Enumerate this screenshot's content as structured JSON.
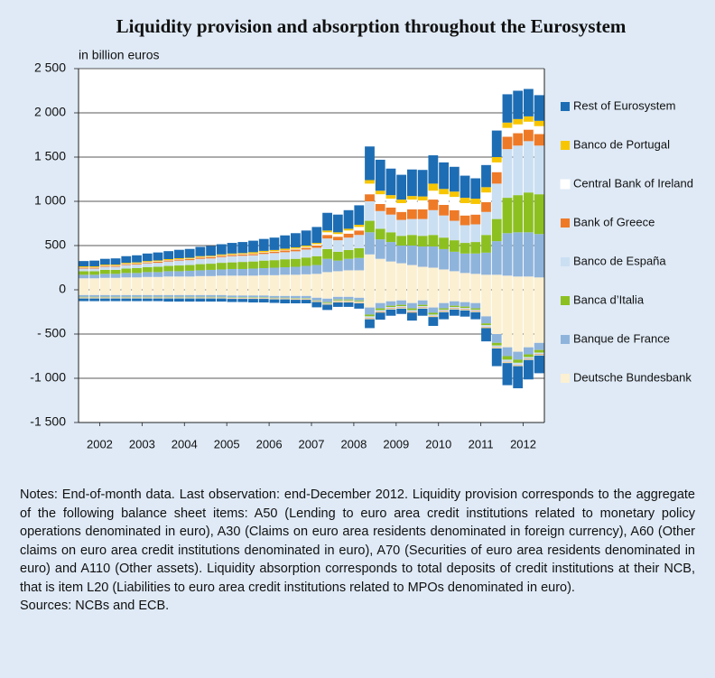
{
  "chart_data": {
    "type": "stacked-bar",
    "title": "Liquidity provision and absorption throughout the Eurosystem",
    "y_label": "in billion euros",
    "x": [
      2002.125,
      2002.375,
      2002.625,
      2002.875,
      2003.125,
      2003.375,
      2003.625,
      2003.875,
      2004.125,
      2004.375,
      2004.625,
      2004.875,
      2005.125,
      2005.375,
      2005.625,
      2005.875,
      2006.125,
      2006.375,
      2006.625,
      2006.875,
      2007.125,
      2007.375,
      2007.625,
      2007.875,
      2008.125,
      2008.375,
      2008.625,
      2008.875,
      2009.125,
      2009.375,
      2009.625,
      2009.875,
      2010.125,
      2010.375,
      2010.625,
      2010.875,
      2011.125,
      2011.375,
      2011.625,
      2011.875,
      2012.125,
      2012.375,
      2012.625,
      2012.875
    ],
    "xlim": [
      2002,
      2013
    ],
    "xticks": [
      {
        "value": 2002.5,
        "label": "2002"
      },
      {
        "value": 2003.5,
        "label": "2003"
      },
      {
        "value": 2004.5,
        "label": "2004"
      },
      {
        "value": 2005.5,
        "label": "2005"
      },
      {
        "value": 2006.5,
        "label": "2006"
      },
      {
        "value": 2007.5,
        "label": "2007"
      },
      {
        "value": 2008.5,
        "label": "2008"
      },
      {
        "value": 2009.5,
        "label": "2009"
      },
      {
        "value": 2010.5,
        "label": "2010"
      },
      {
        "value": 2011.5,
        "label": "2011"
      },
      {
        "value": 2012.5,
        "label": "2012"
      }
    ],
    "ylim": [
      -1500,
      2500
    ],
    "yticks": [
      {
        "value": -1500,
        "label": "-1 500"
      },
      {
        "value": -1000,
        "label": "-1 000"
      },
      {
        "value": -500,
        "label": "- 500"
      },
      0,
      500,
      {
        "value": 1000,
        "label": "1 000"
      },
      {
        "value": 1500,
        "label": "1 500"
      },
      {
        "value": 2000,
        "label": "2 000"
      },
      {
        "value": 2500,
        "label": "2 500"
      }
    ],
    "grid": true,
    "series": [
      {
        "name": "Deutsche Bundesbank",
        "color": "#fbf0d2",
        "values": [
          130,
          130,
          135,
          135,
          140,
          140,
          145,
          145,
          150,
          150,
          150,
          155,
          155,
          160,
          160,
          160,
          160,
          165,
          165,
          170,
          170,
          175,
          180,
          200,
          210,
          220,
          220,
          400,
          350,
          320,
          300,
          280,
          260,
          250,
          230,
          210,
          190,
          180,
          170,
          170,
          160,
          150,
          150,
          140
        ],
        "absorption": [
          -60,
          -60,
          -60,
          -60,
          -60,
          -60,
          -60,
          -60,
          -60,
          -60,
          -60,
          -60,
          -60,
          -60,
          -65,
          -65,
          -65,
          -65,
          -70,
          -70,
          -70,
          -70,
          -90,
          -100,
          -80,
          -80,
          -90,
          -200,
          -150,
          -130,
          -120,
          -150,
          -120,
          -200,
          -150,
          -130,
          -140,
          -150,
          -300,
          -500,
          -650,
          -700,
          -650,
          -600
        ]
      },
      {
        "name": "Banque de France",
        "color": "#8fb4dc",
        "values": [
          40,
          40,
          45,
          45,
          50,
          50,
          55,
          55,
          60,
          60,
          65,
          65,
          70,
          70,
          75,
          75,
          80,
          80,
          85,
          85,
          90,
          95,
          100,
          150,
          120,
          130,
          140,
          250,
          220,
          220,
          200,
          220,
          230,
          240,
          230,
          220,
          220,
          230,
          250,
          380,
          480,
          500,
          500,
          490
        ],
        "absorption": [
          -20,
          -20,
          -20,
          -20,
          -20,
          -20,
          -20,
          -20,
          -20,
          -20,
          -20,
          -20,
          -20,
          -20,
          -20,
          -20,
          -20,
          -20,
          -20,
          -20,
          -25,
          -25,
          -30,
          -40,
          -30,
          -30,
          -30,
          -80,
          -60,
          -50,
          -50,
          -60,
          -50,
          -60,
          -60,
          -50,
          -50,
          -60,
          -80,
          -100,
          -100,
          -90,
          -80,
          -80
        ]
      },
      {
        "name": "Banca d’Italia",
        "color": "#8cc021",
        "values": [
          40,
          40,
          45,
          45,
          50,
          55,
          55,
          60,
          60,
          65,
          65,
          70,
          70,
          75,
          75,
          80,
          80,
          85,
          85,
          90,
          90,
          95,
          100,
          110,
          100,
          100,
          110,
          130,
          120,
          110,
          110,
          120,
          120,
          130,
          130,
          130,
          120,
          130,
          200,
          250,
          400,
          420,
          450,
          450
        ],
        "absorption": [
          -5,
          -5,
          -5,
          -5,
          -5,
          -5,
          -5,
          -5,
          -5,
          -5,
          -5,
          -5,
          -5,
          -5,
          -5,
          -5,
          -5,
          -5,
          -5,
          -5,
          -5,
          -5,
          -5,
          -10,
          -10,
          -10,
          -10,
          -20,
          -20,
          -15,
          -15,
          -20,
          -15,
          -20,
          -15,
          -15,
          -15,
          -15,
          -20,
          -30,
          -40,
          -35,
          -30,
          -30
        ]
      },
      {
        "name": "Banco de España",
        "color": "#cbdff2",
        "values": [
          30,
          30,
          35,
          35,
          40,
          40,
          45,
          45,
          50,
          55,
          55,
          60,
          60,
          65,
          70,
          70,
          70,
          75,
          80,
          80,
          85,
          90,
          95,
          120,
          130,
          140,
          150,
          220,
          200,
          200,
          180,
          180,
          190,
          280,
          250,
          220,
          200,
          200,
          260,
          400,
          550,
          560,
          580,
          550
        ],
        "absorption": [
          -5,
          -5,
          -5,
          -5,
          -5,
          -5,
          -5,
          -5,
          -5,
          -5,
          -5,
          -5,
          -5,
          -5,
          -5,
          -5,
          -5,
          -5,
          -5,
          -5,
          -5,
          -5,
          -5,
          -10,
          -10,
          -10,
          -10,
          -20,
          -15,
          -15,
          -15,
          -15,
          -15,
          -15,
          -15,
          -15,
          -15,
          -15,
          -20,
          -20,
          -25,
          -25,
          -20,
          -20
        ]
      },
      {
        "name": "Bank of Greece",
        "color": "#ee7a28",
        "values": [
          10,
          10,
          10,
          10,
          10,
          10,
          10,
          12,
          12,
          12,
          12,
          15,
          15,
          15,
          15,
          15,
          15,
          15,
          15,
          20,
          20,
          20,
          25,
          40,
          40,
          45,
          50,
          80,
          80,
          80,
          90,
          110,
          110,
          120,
          120,
          120,
          110,
          110,
          110,
          130,
          140,
          140,
          130,
          130
        ],
        "absorption": [
          -3,
          -3,
          -3,
          -3,
          -3,
          -3,
          -3,
          -3,
          -3,
          -3,
          -3,
          -3,
          -3,
          -3,
          -3,
          -3,
          -3,
          -3,
          -3,
          -3,
          -3,
          -3,
          -3,
          -3,
          -5,
          -5,
          -5,
          -5,
          -5,
          -5,
          -5,
          -5,
          -5,
          -5,
          -5,
          -5,
          -5,
          -5,
          -5,
          -5,
          -5,
          -5,
          -5,
          -5
        ]
      },
      {
        "name": "Central Bank of Ireland",
        "color": "#ffffff",
        "values": [
          5,
          5,
          5,
          5,
          5,
          5,
          5,
          5,
          5,
          5,
          5,
          5,
          5,
          5,
          5,
          5,
          5,
          5,
          5,
          5,
          10,
          10,
          15,
          30,
          30,
          35,
          40,
          120,
          110,
          100,
          100,
          110,
          100,
          100,
          120,
          150,
          140,
          120,
          110,
          110,
          100,
          100,
          90,
          90
        ],
        "absorption": [
          -3,
          -3,
          -3,
          -3,
          -3,
          -3,
          -3,
          -3,
          -3,
          -3,
          -3,
          -3,
          -3,
          -3,
          -3,
          -3,
          -3,
          -3,
          -3,
          -3,
          -3,
          -3,
          -3,
          -3,
          -5,
          -5,
          -5,
          -5,
          -5,
          -5,
          -5,
          -5,
          -5,
          -5,
          -5,
          -5,
          -5,
          -5,
          -5,
          -5,
          -5,
          -5,
          -5,
          -5
        ]
      },
      {
        "name": "Banco de Portugal",
        "color": "#f7c600",
        "values": [
          10,
          10,
          10,
          10,
          10,
          10,
          10,
          10,
          10,
          10,
          10,
          10,
          10,
          10,
          10,
          10,
          15,
          15,
          15,
          15,
          15,
          15,
          15,
          20,
          20,
          20,
          25,
          40,
          40,
          40,
          40,
          40,
          45,
          80,
          60,
          60,
          60,
          60,
          60,
          60,
          60,
          60,
          60,
          60
        ],
        "absorption": [
          -2,
          -2,
          -2,
          -2,
          -2,
          -2,
          -2,
          -2,
          -2,
          -2,
          -2,
          -2,
          -2,
          -2,
          -2,
          -2,
          -2,
          -2,
          -2,
          -2,
          -2,
          -2,
          -2,
          -2,
          -3,
          -3,
          -3,
          -3,
          -3,
          -3,
          -3,
          -3,
          -3,
          -3,
          -3,
          -3,
          -3,
          -3,
          -3,
          -3,
          -3,
          -3,
          -3,
          -3
        ]
      },
      {
        "name": "Rest of Eurosystem",
        "color": "#1d6db4",
        "values": [
          60,
          65,
          65,
          70,
          75,
          80,
          85,
          90,
          90,
          95,
          100,
          105,
          110,
          115,
          120,
          125,
          130,
          135,
          140,
          150,
          160,
          170,
          180,
          200,
          200,
          210,
          220,
          380,
          350,
          300,
          280,
          300,
          300,
          320,
          300,
          280,
          250,
          230,
          250,
          300,
          320,
          320,
          310,
          290
        ],
        "absorption": [
          -30,
          -30,
          -30,
          -30,
          -30,
          -30,
          -30,
          -30,
          -35,
          -35,
          -35,
          -35,
          -35,
          -35,
          -35,
          -35,
          -40,
          -40,
          -40,
          -45,
          -40,
          -40,
          -60,
          -60,
          -50,
          -50,
          -60,
          -100,
          -80,
          -70,
          -60,
          -90,
          -80,
          -100,
          -80,
          -70,
          -70,
          -80,
          -150,
          -200,
          -250,
          -250,
          -220,
          -200
        ]
      }
    ],
    "notes": "Notes: End-of-month data. Last observation: end-December 2012. Liquidity provision corresponds to the aggregate of the following balance sheet items: A50 (Lending to euro area credit institutions related to monetary policy operations denominated in euro), A30 (Claims on euro area residents denominated in foreign currency), A60 (Other claims on euro area credit institutions denominated in euro), A70 (Securities of euro area residents denominated in euro) and A110 (Other assets). Liquidity absorption corresponds to total deposits of credit institutions at their NCB, that is item L20 (Liabilities to euro area credit institutions related to MPOs denominated in euro).",
    "sources": "Sources: NCBs and ECB."
  }
}
